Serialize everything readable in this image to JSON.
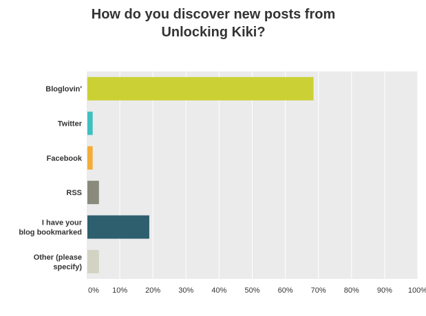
{
  "chart_data": {
    "type": "bar",
    "orientation": "horizontal",
    "title": "How do you discover new posts from Unlocking Kiki?",
    "categories": [
      [
        "Bloglovin'"
      ],
      [
        "Twitter"
      ],
      [
        "Facebook"
      ],
      [
        "RSS"
      ],
      [
        "I have your",
        "blog bookmarked"
      ],
      [
        "Other (please",
        "specify)"
      ]
    ],
    "values": [
      68.5,
      1.8,
      1.8,
      3.7,
      18.9,
      3.7
    ],
    "colors": [
      "#cbd135",
      "#3ec0c1",
      "#f4ac38",
      "#8a8a7c",
      "#2e5f6e",
      "#d3d3c4"
    ],
    "xlim": [
      0,
      100
    ],
    "xticks": [
      0,
      10,
      20,
      30,
      40,
      50,
      60,
      70,
      80,
      90,
      100
    ],
    "xtick_labels": [
      "0%",
      "10%",
      "20%",
      "30%",
      "40%",
      "50%",
      "60%",
      "70%",
      "80%",
      "90%",
      "100%"
    ],
    "grid": true,
    "background": "#ebebeb",
    "grid_color": "#ffffff"
  }
}
